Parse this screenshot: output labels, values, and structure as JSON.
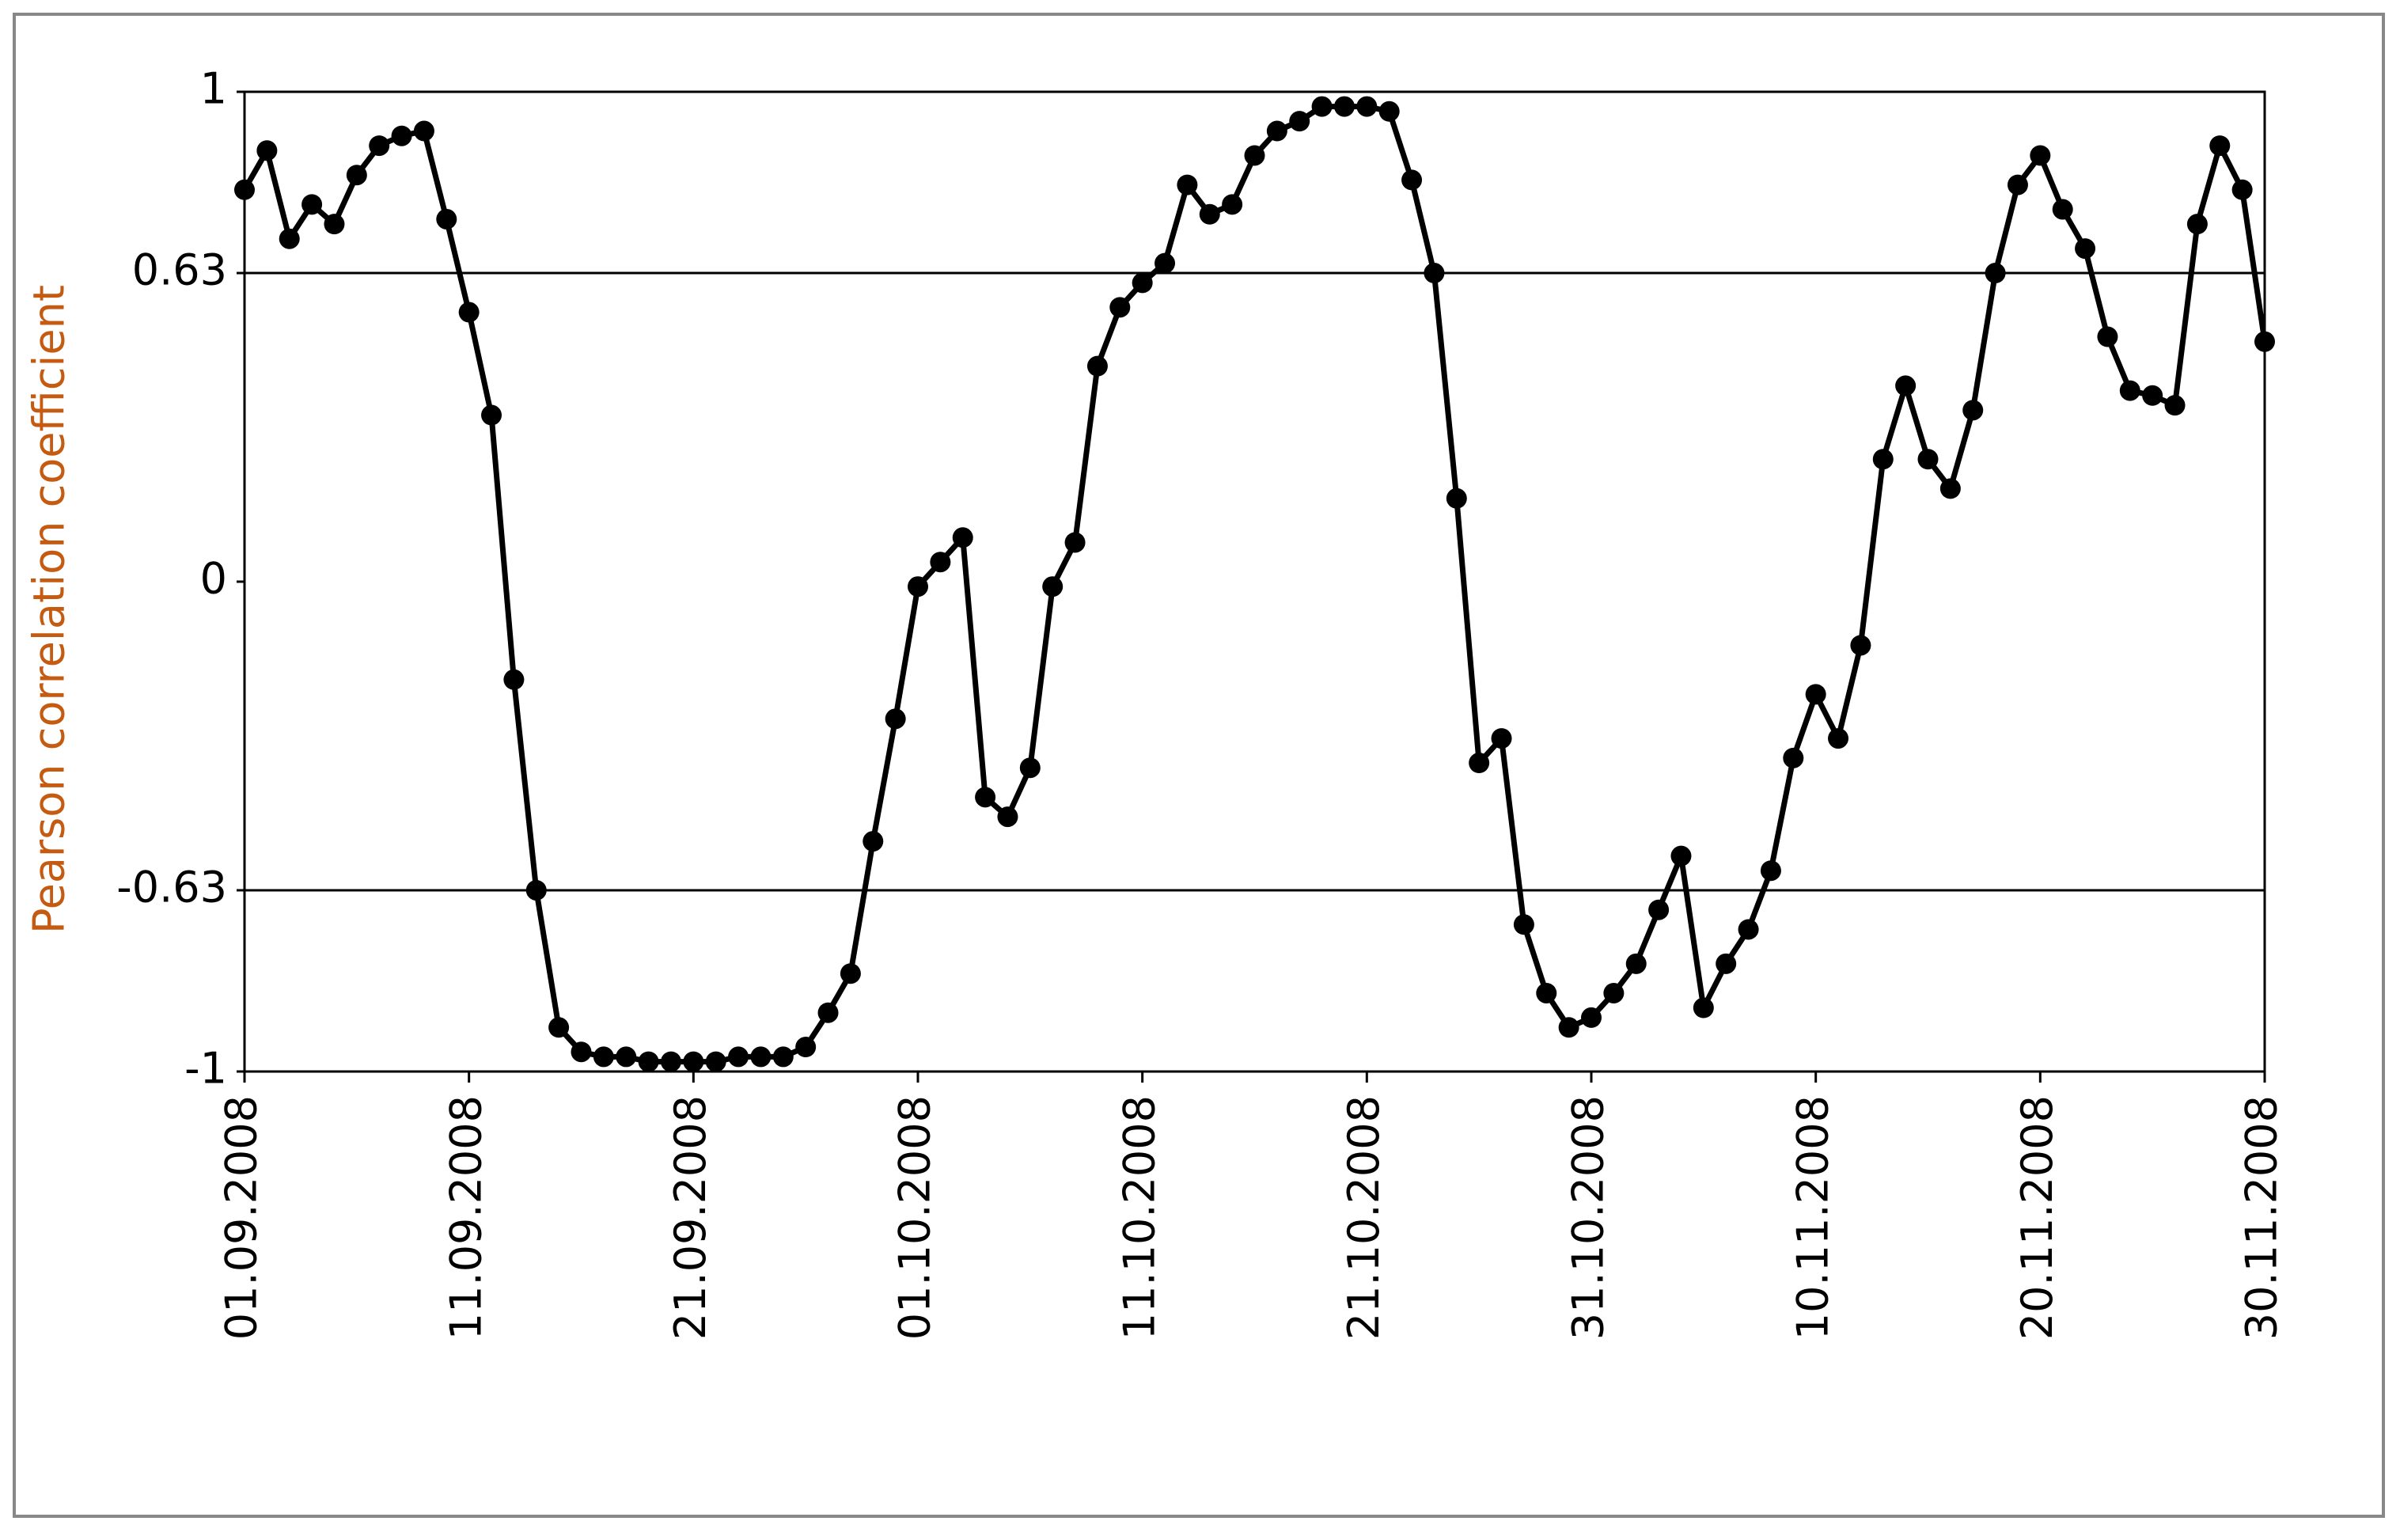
{
  "chart_data": {
    "type": "line",
    "y_label": "Pearson correlation coefficient",
    "categories": [
      "01.09.2008",
      null,
      null,
      null,
      null,
      null,
      null,
      null,
      null,
      null,
      "11.09.2008",
      null,
      null,
      null,
      null,
      null,
      null,
      null,
      null,
      null,
      "21.09.2008",
      null,
      null,
      null,
      null,
      null,
      null,
      null,
      null,
      null,
      "01.10.2008",
      null,
      null,
      null,
      null,
      null,
      null,
      null,
      null,
      null,
      "11.10.2008",
      null,
      null,
      null,
      null,
      null,
      null,
      null,
      null,
      null,
      "21.10.2008",
      null,
      null,
      null,
      null,
      null,
      null,
      null,
      null,
      null,
      "31.10.2008",
      null,
      null,
      null,
      null,
      null,
      null,
      null,
      null,
      null,
      "10.11.2008",
      null,
      null,
      null,
      null,
      null,
      null,
      null,
      null,
      null,
      "20.11.2008",
      null,
      null,
      null,
      null,
      null,
      null,
      null,
      null,
      null,
      "30.11.2008"
    ],
    "series": [
      {
        "color": "#000000",
        "values": [
          0.8,
          0.88,
          0.7,
          0.77,
          0.73,
          0.83,
          0.89,
          0.91,
          0.92,
          0.74,
          0.55,
          0.34,
          -0.2,
          -0.63,
          -0.91,
          -0.96,
          -0.97,
          -0.97,
          -0.98,
          -0.98,
          -0.98,
          -0.98,
          -0.97,
          -0.97,
          -0.97,
          -0.95,
          -0.88,
          -0.8,
          -0.53,
          -0.28,
          -0.01,
          0.04,
          0.09,
          -0.44,
          -0.48,
          -0.38,
          -0.01,
          0.08,
          0.44,
          0.56,
          0.61,
          0.65,
          0.81,
          0.75,
          0.77,
          0.87,
          0.92,
          0.94,
          0.97,
          0.97,
          0.97,
          0.96,
          0.82,
          0.63,
          0.17,
          -0.37,
          -0.32,
          -0.7,
          -0.84,
          -0.91,
          -0.89,
          -0.84,
          -0.78,
          -0.67,
          -0.56,
          -0.87,
          -0.78,
          -0.71,
          -0.59,
          -0.36,
          -0.23,
          -0.32,
          -0.13,
          0.25,
          0.4,
          0.25,
          0.19,
          0.35,
          0.63,
          0.81,
          0.87,
          0.76,
          0.68,
          0.5,
          0.39,
          0.38,
          0.36,
          0.73,
          0.89,
          0.8,
          0.49
        ]
      }
    ],
    "ylim": [
      -1,
      1
    ],
    "yticks": [
      -1,
      -0.63,
      0,
      0.63,
      1
    ],
    "hlines": [
      -0.63,
      0.63
    ],
    "y_label_color": "#c55a11"
  }
}
